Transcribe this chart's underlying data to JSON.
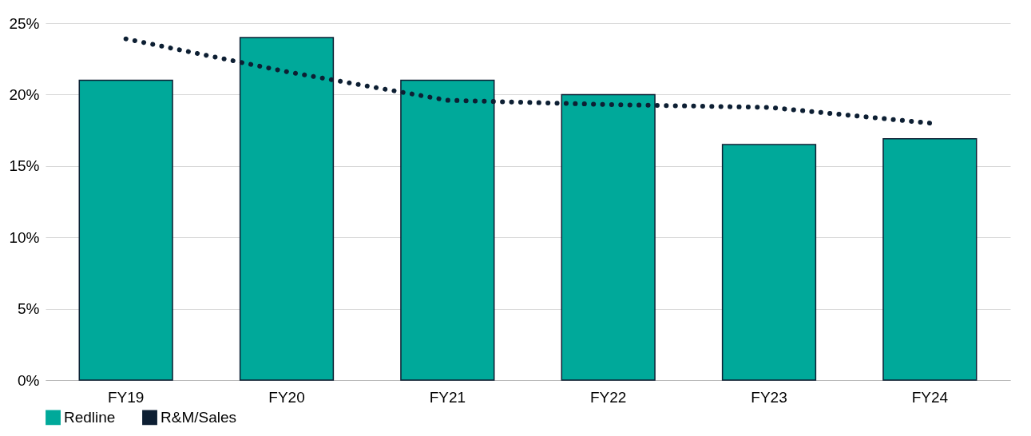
{
  "chart_data": {
    "type": "bar",
    "categories": [
      "FY19",
      "FY20",
      "FY21",
      "FY22",
      "FY23",
      "FY24"
    ],
    "series": [
      {
        "name": "Redline",
        "color": "#00a99a",
        "values": [
          21.0,
          24.0,
          21.0,
          20.0,
          16.5,
          16.9
        ]
      },
      {
        "name": "R&M/Sales",
        "type": "line",
        "color": "#0d1f33",
        "line_style": "dotted",
        "values": [
          23.9,
          21.6,
          19.6,
          19.3,
          19.1,
          18.0
        ]
      }
    ],
    "ylim": [
      0,
      25
    ],
    "yticks": [
      {
        "value": 0,
        "label": "0%"
      },
      {
        "value": 5,
        "label": "5%"
      },
      {
        "value": 10,
        "label": "10%"
      },
      {
        "value": 15,
        "label": "15%"
      },
      {
        "value": 20,
        "label": "20%"
      },
      {
        "value": 25,
        "label": "25%"
      }
    ],
    "grid": "y",
    "legend": "bottom"
  }
}
